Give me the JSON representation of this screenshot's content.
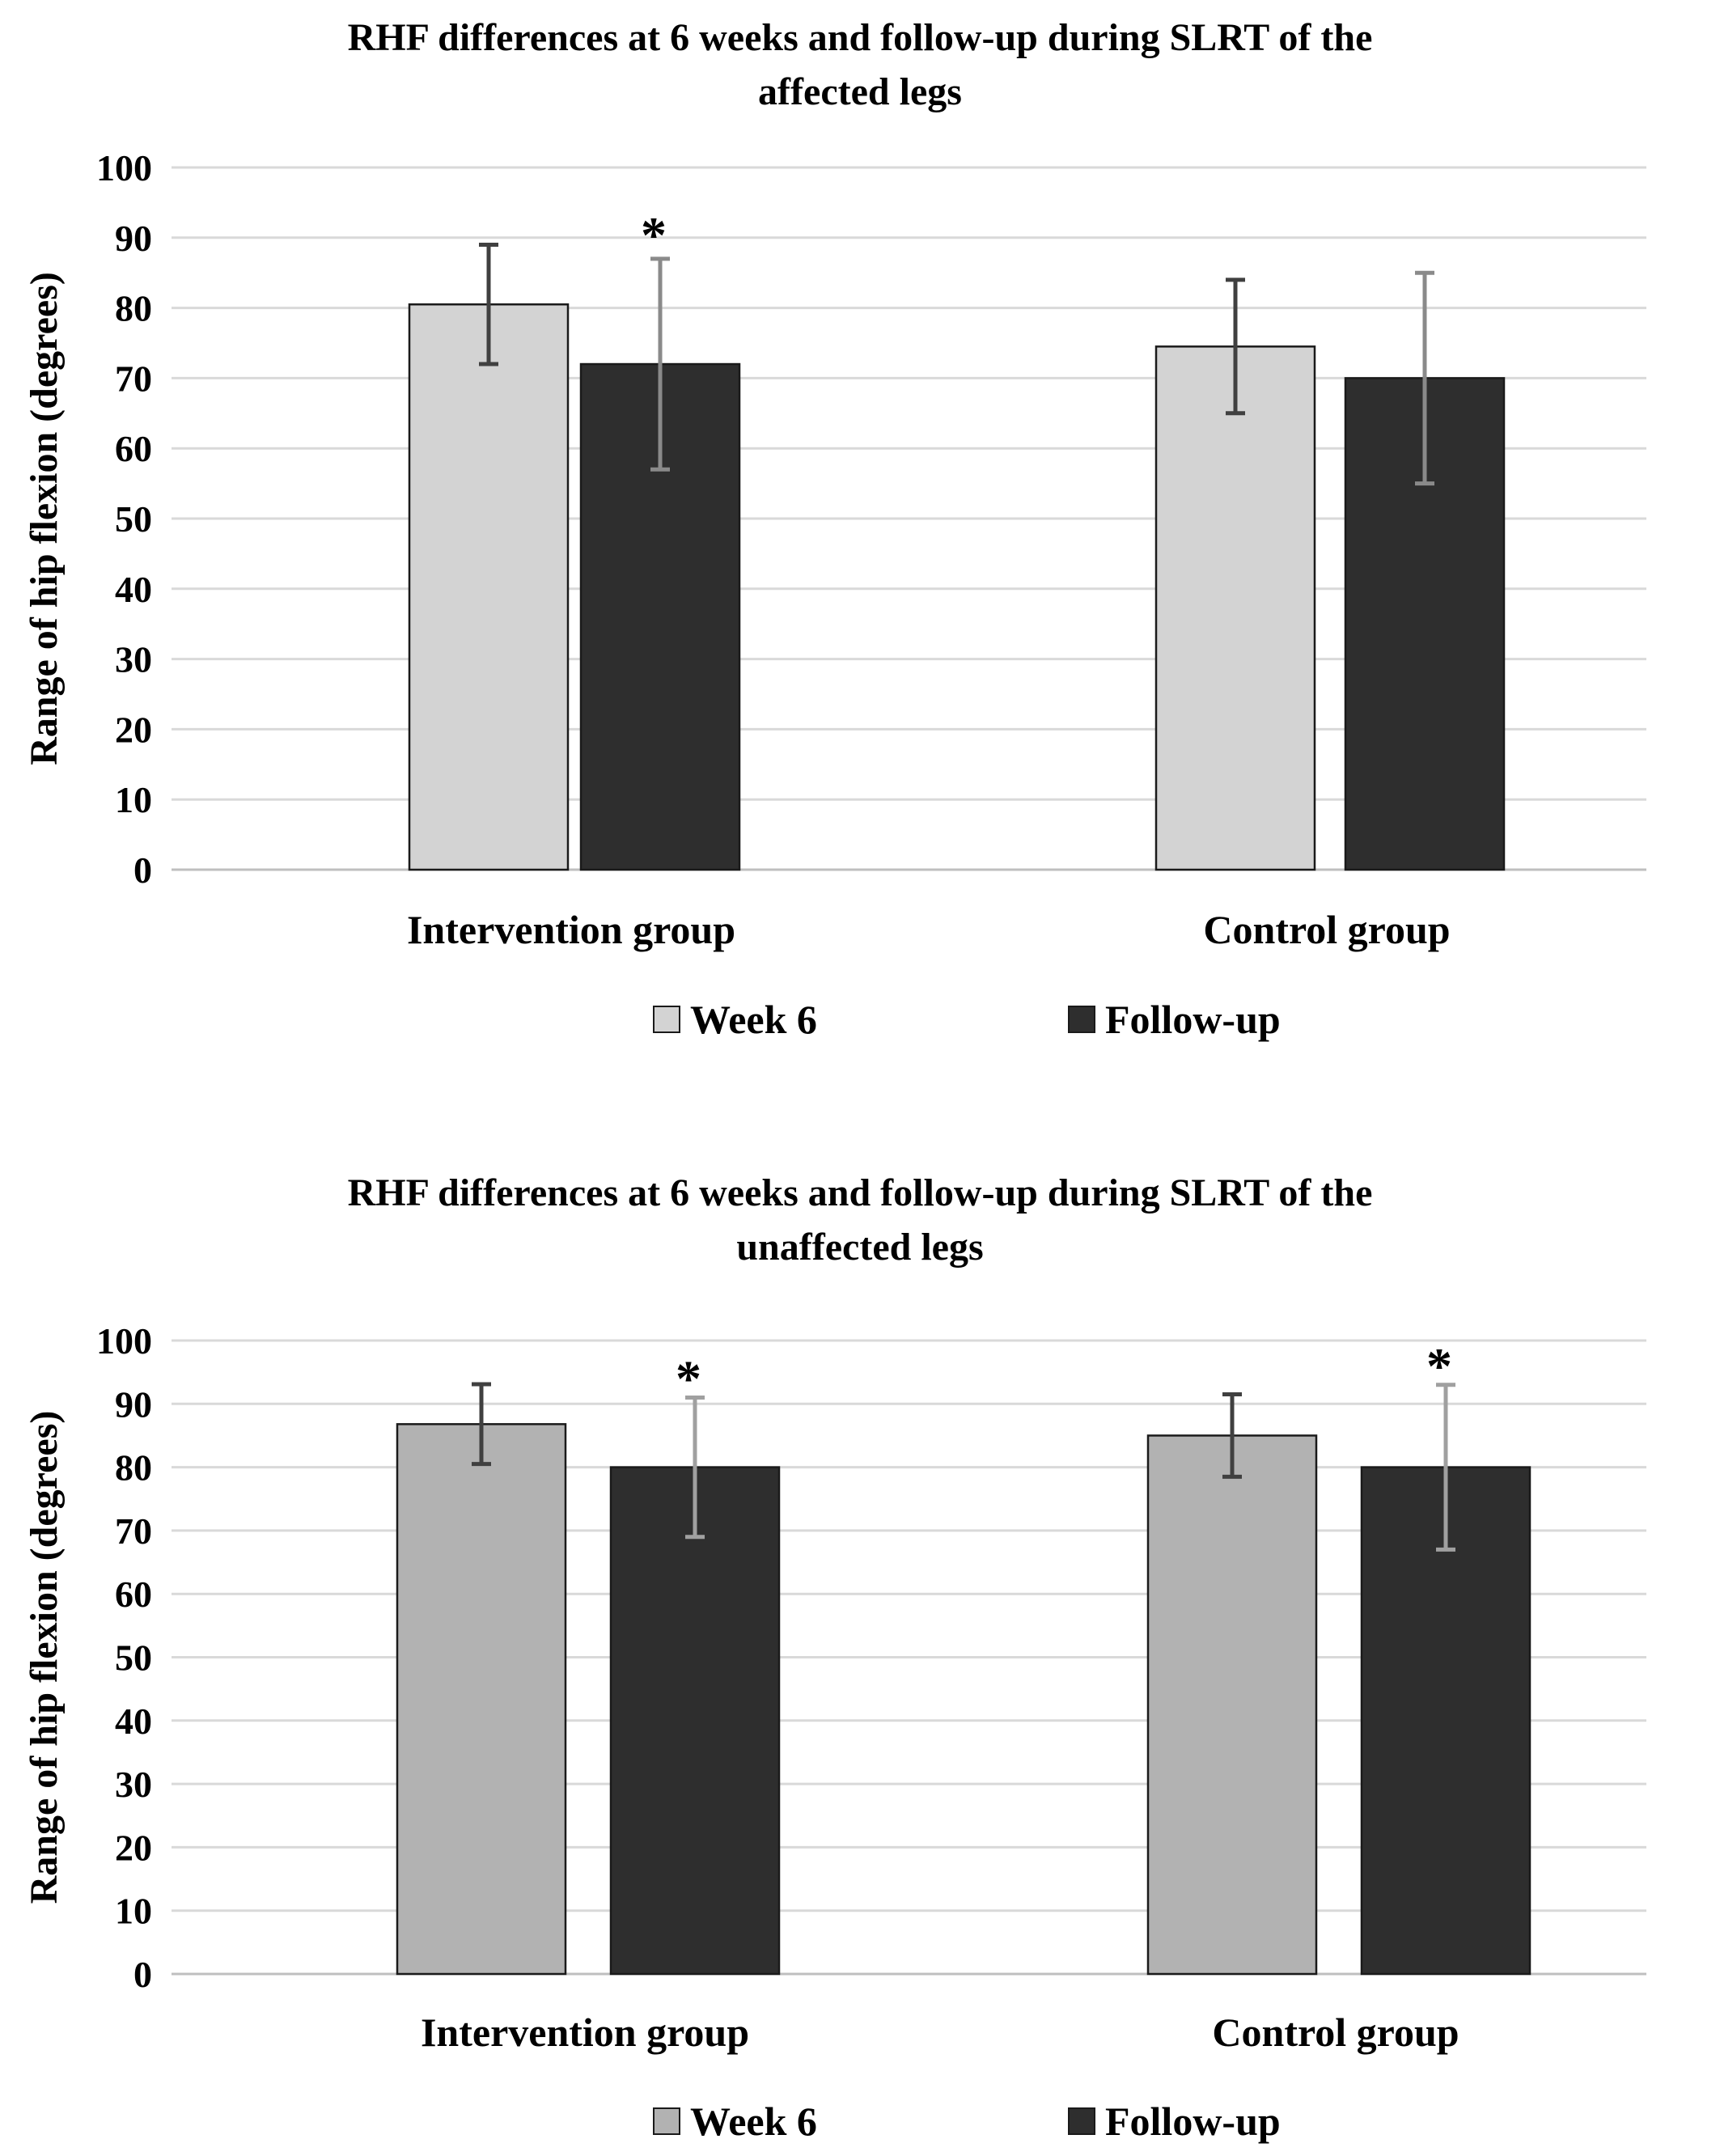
{
  "chart_data": [
    {
      "type": "bar",
      "title": "RHF differences at 6 weeks and follow-up during SLRT of the affected legs",
      "title_lines": [
        "RHF differences at 6 weeks and follow-up during SLRT of the",
        "affected legs"
      ],
      "ylabel": "Range of hip flexion (degrees)",
      "xlabel": "",
      "ylim": [
        0,
        100
      ],
      "yticks": [
        "0",
        "10",
        "20",
        "30",
        "40",
        "50",
        "60",
        "70",
        "80",
        "90",
        "100"
      ],
      "grid": true,
      "legend_position": "bottom",
      "categories": [
        "Intervention group",
        "Control group"
      ],
      "series": [
        {
          "name": "Week 6",
          "color": "#d3d3d3",
          "error_color": "#404040",
          "values": [
            80.5,
            74.5
          ],
          "error": [
            8.5,
            9.5
          ]
        },
        {
          "name": "Follow-up",
          "color": "#2e2e2e",
          "error_color": "#8a8a8a",
          "values": [
            72,
            70
          ],
          "error": [
            15,
            15
          ]
        }
      ],
      "annotations": [
        {
          "text": "*",
          "category": "Intervention group",
          "series": "Follow-up"
        }
      ]
    },
    {
      "type": "bar",
      "title": "RHF differences at 6 weeks and follow-up during SLRT of the unaffected legs",
      "title_lines": [
        "RHF differences at 6 weeks and follow-up during SLRT of the",
        "unaffected legs"
      ],
      "ylabel": "Range of hip flexion (degrees)",
      "xlabel": "",
      "ylim": [
        0,
        100
      ],
      "yticks": [
        "0",
        "10",
        "20",
        "30",
        "40",
        "50",
        "60",
        "70",
        "80",
        "90",
        "100"
      ],
      "grid": true,
      "legend_position": "bottom",
      "categories": [
        "Intervention group",
        "Control group"
      ],
      "series": [
        {
          "name": "Week 6",
          "color": "#b2b2b2",
          "error_color": "#404040",
          "values": [
            86.8,
            85
          ],
          "error": [
            6.3,
            6.5
          ]
        },
        {
          "name": "Follow-up",
          "color": "#2e2e2e",
          "error_color": "#a0a0a0",
          "values": [
            80,
            80
          ],
          "error": [
            11,
            13
          ]
        }
      ],
      "annotations": [
        {
          "text": "*",
          "category": "Intervention group",
          "series": "Follow-up"
        },
        {
          "text": "*",
          "category": "Control group",
          "series": "Follow-up"
        }
      ]
    }
  ]
}
